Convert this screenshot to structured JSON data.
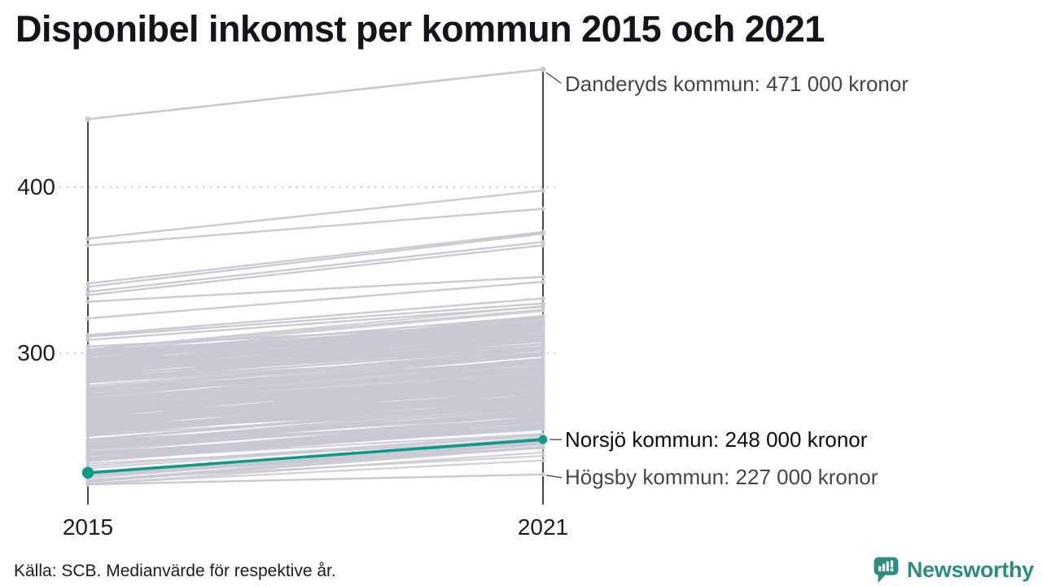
{
  "title": "Disponibel inkomst per kommun 2015 och 2021",
  "source": "Källa: SCB. Medianvärde för respektive år.",
  "brand": {
    "name": "Newsworthy",
    "color": "#2e8b80",
    "icon": "speech-bubble-bar-chart"
  },
  "colors": {
    "highlight": "#12988a",
    "line_gray": "#c9c8d3",
    "axis": "#17171f",
    "grid": "#d4d4dc",
    "connector": "#3f3f4a",
    "annotation_gray": "#45444f",
    "annotation_black": "#0c0c10"
  },
  "chart_data": {
    "type": "line",
    "subtype": "slope-chart",
    "x_labels": [
      "2015",
      "2021"
    ],
    "x_values": [
      2015,
      2021
    ],
    "y_ticks": [
      400,
      300
    ],
    "y_tick_labels": [
      "400",
      "300"
    ],
    "y_axis_implied_unit": "000 kronor",
    "grid": "dotted-horizontal",
    "series_labeled": [
      {
        "name": "Danderyds kommun",
        "values": [
          441,
          471
        ],
        "role": "top",
        "color": "gray"
      },
      {
        "name": "Norsjö kommun",
        "values": [
          228,
          248
        ],
        "role": "highlight",
        "color": "teal"
      },
      {
        "name": "Högsby kommun",
        "values": [
          221,
          227
        ],
        "role": "bottom-2021",
        "color": "gray"
      }
    ],
    "annotations": {
      "danderyd": {
        "label": "Danderyds kommun: 471 000 kronor"
      },
      "norsjo": {
        "label": "Norsjö kommun: 248 000 kronor"
      },
      "hogsby": {
        "label": "Högsby kommun: 227 000 kronor"
      }
    },
    "background": {
      "description": "all other Swedish municipalities, gray slope lines 2015→2021",
      "outlier_lines": [
        [
          369,
          398
        ],
        [
          365,
          387
        ],
        [
          342,
          373
        ],
        [
          340,
          372
        ],
        [
          337,
          367
        ],
        [
          335,
          365
        ],
        [
          331,
          346
        ],
        [
          321,
          343
        ],
        [
          311,
          333
        ],
        [
          310,
          330
        ],
        [
          308,
          328
        ],
        [
          304,
          318
        ],
        [
          302,
          315
        ]
      ],
      "bands": [
        {
          "count": 150,
          "v2015": [
            252,
            303
          ],
          "gain": [
            15,
            27
          ]
        },
        {
          "count": 62,
          "v2015": [
            235,
            258
          ],
          "gain": [
            15,
            25
          ]
        },
        {
          "count": 22,
          "v2015": [
            221,
            238
          ],
          "gain": [
            12,
            22
          ]
        }
      ],
      "seed": 20150721
    }
  }
}
